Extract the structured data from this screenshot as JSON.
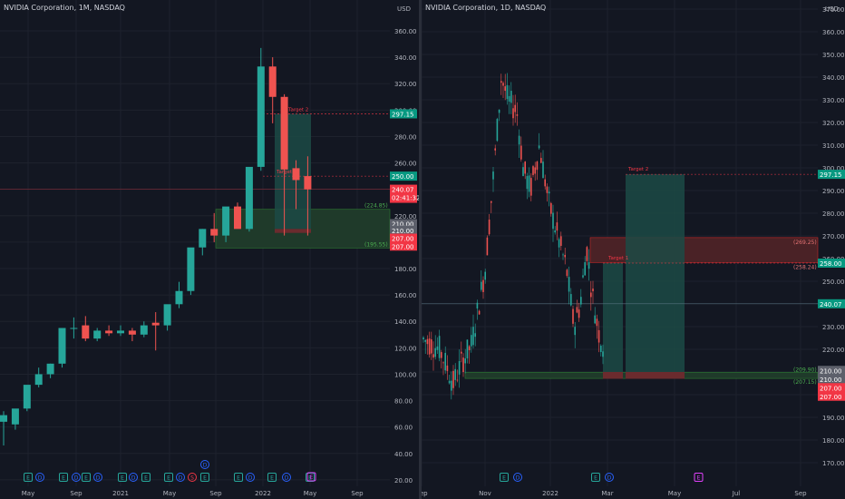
{
  "left_chart": {
    "title": "NVIDIA Corporation, 1M, NASDAQ",
    "currency": "USD",
    "y_ticks": [
      "360.00",
      "340.00",
      "320.00",
      "300.00",
      "280.00",
      "260.00",
      "240.00",
      "220.00",
      "200.00",
      "180.00",
      "160.00",
      "140.00",
      "120.00",
      "100.00",
      "80.00",
      "60.00",
      "40.00",
      "20.00"
    ],
    "y_tick_values": [
      360,
      340,
      320,
      300,
      280,
      260,
      240,
      220,
      200,
      180,
      160,
      140,
      120,
      100,
      80,
      60,
      40,
      20
    ],
    "x_labels": [
      "May",
      "Sep",
      "2021",
      "May",
      "Sep",
      "2022",
      "May",
      "Sep"
    ],
    "target1_label": "Target 1",
    "target2_label": "Target 2",
    "zone_top_label": "(224.85)",
    "zone_bottom_label": "(195.55)",
    "price_tags": {
      "target2": "297.15",
      "target1": "250.00",
      "last_price": "240.07",
      "countdown": "02:41:32",
      "t210a": "210.00",
      "t210b": "210.00",
      "t207a": "207.00",
      "t207b": "207.00"
    },
    "event_markers": [
      "E",
      "E",
      "E",
      "D",
      "E",
      "D",
      "E",
      "D",
      "E",
      "E",
      "D",
      "S",
      "E",
      "E",
      "D",
      "E",
      "D",
      "E",
      "D",
      "E"
    ],
    "candles": [
      {
        "o": 64,
        "h": 72,
        "l": 46,
        "c": 69
      },
      {
        "o": 62,
        "h": 70,
        "l": 58,
        "c": 74
      },
      {
        "o": 74,
        "h": 80,
        "l": 72,
        "c": 92
      },
      {
        "o": 92,
        "h": 105,
        "l": 90,
        "c": 100
      },
      {
        "o": 100,
        "h": 108,
        "l": 97,
        "c": 108
      },
      {
        "o": 108,
        "h": 120,
        "l": 105,
        "c": 135
      },
      {
        "o": 135,
        "h": 143,
        "l": 127,
        "c": 135
      },
      {
        "o": 137,
        "h": 144,
        "l": 125,
        "c": 127
      },
      {
        "o": 127,
        "h": 135,
        "l": 125,
        "c": 133
      },
      {
        "o": 133,
        "h": 137,
        "l": 129,
        "c": 131
      },
      {
        "o": 131,
        "h": 137,
        "l": 129,
        "c": 133
      },
      {
        "o": 133,
        "h": 135,
        "l": 125,
        "c": 130
      },
      {
        "o": 130,
        "h": 140,
        "l": 128,
        "c": 137
      },
      {
        "o": 139,
        "h": 147,
        "l": 118,
        "c": 137
      },
      {
        "o": 137,
        "h": 152,
        "l": 133,
        "c": 153
      },
      {
        "o": 153,
        "h": 170,
        "l": 150,
        "c": 163
      },
      {
        "o": 163,
        "h": 180,
        "l": 160,
        "c": 196
      },
      {
        "o": 196,
        "h": 210,
        "l": 190,
        "c": 210
      },
      {
        "o": 210,
        "h": 222,
        "l": 200,
        "c": 205
      },
      {
        "o": 205,
        "h": 220,
        "l": 200,
        "c": 227
      },
      {
        "o": 227,
        "h": 230,
        "l": 224,
        "c": 210
      },
      {
        "o": 210,
        "h": 255,
        "l": 208,
        "c": 257
      },
      {
        "o": 257,
        "h": 347,
        "l": 254,
        "c": 333
      },
      {
        "o": 333,
        "h": 340,
        "l": 290,
        "c": 310
      },
      {
        "o": 310,
        "h": 312,
        "l": 205,
        "c": 255
      },
      {
        "o": 256,
        "h": 262,
        "l": 225,
        "c": 247
      },
      {
        "o": 250,
        "h": 265,
        "l": 205,
        "c": 240
      }
    ]
  },
  "right_chart": {
    "title": "NVIDIA Corporation, 1D, NASDAQ",
    "currency": "USD",
    "y_ticks": [
      "370.00",
      "360.00",
      "350.00",
      "340.00",
      "330.00",
      "320.00",
      "310.00",
      "300.00",
      "290.00",
      "280.00",
      "270.00",
      "260.00",
      "250.00",
      "240.00",
      "230.00",
      "220.00",
      "210.00",
      "200.00",
      "190.00",
      "180.00",
      "170.00"
    ],
    "y_tick_values": [
      370,
      360,
      350,
      340,
      330,
      320,
      310,
      300,
      290,
      280,
      270,
      260,
      250,
      240,
      230,
      220,
      210,
      200,
      190,
      180,
      170
    ],
    "x_labels": [
      "Sep",
      "Nov",
      "2022",
      "Mar",
      "May",
      "Jul",
      "Sep"
    ],
    "target1_label": "Target 1",
    "target2_label": "Target 2",
    "zone_top_label": "(269.25)",
    "zone_bottom_label": "(258.24)",
    "support_top_label": "(209.90)",
    "support_bottom_label": "(207.15)",
    "price_tags": {
      "target2": "297.15",
      "target1": "258.00",
      "last_price": "240.07",
      "t210a": "210.00",
      "t210b": "210.00",
      "t207a": "207.00",
      "t207b": "207.00"
    },
    "event_markers": [
      "E",
      "D",
      "E",
      "D",
      "E"
    ]
  },
  "colors": {
    "up": "#26a69a",
    "down": "#ef5350",
    "background": "#131722",
    "grid": "#1e222d",
    "axis_text": "#b2b5be",
    "target_red": "#f23645",
    "zone_green": "#1b5e20",
    "zone_red": "#7f2a2a",
    "price_tag_green": "#089981",
    "price_tag_red": "#f23645",
    "price_tag_grey": "#5d606b"
  }
}
